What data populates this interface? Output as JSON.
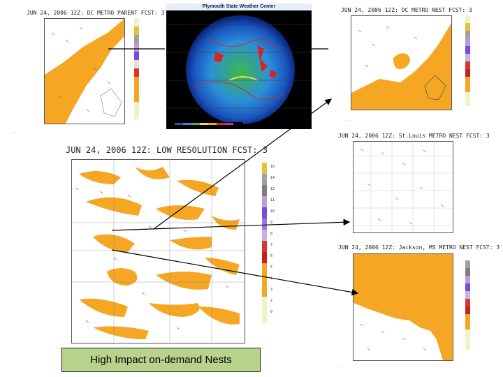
{
  "panels": {
    "parent": {
      "title": "JUN 24, 2006 12Z: DC METRO PARENT FCST: 3"
    },
    "dc_nest": {
      "title": "JUN 24, 2006 12Z: DC METRO NEST FCST: 3"
    },
    "low_res": {
      "title": "JUN 24, 2006 12Z: LOW RESOLUTION FCST: 3"
    },
    "stlouis_nest": {
      "title": "JUN 24, 2006 12Z: St.Louis METRO NEST FCST: 3"
    },
    "jackson_nest": {
      "title": "JUN 24, 2006 12Z: Jackson, MS METRO NEST FCST: 3"
    }
  },
  "radar": {
    "header": "Plymouth State Weather Center"
  },
  "caption": "High Impact on-demand Nests",
  "colorbar_labels": [
    "0",
    "2",
    "3",
    "4",
    "5",
    "6",
    "7",
    "8",
    "9",
    "10",
    "11",
    "12",
    "14",
    "16"
  ],
  "colors": {
    "precip_orange": "#f5a623",
    "caption_bg": "#b7d28a",
    "radar_bg": "#000000"
  }
}
